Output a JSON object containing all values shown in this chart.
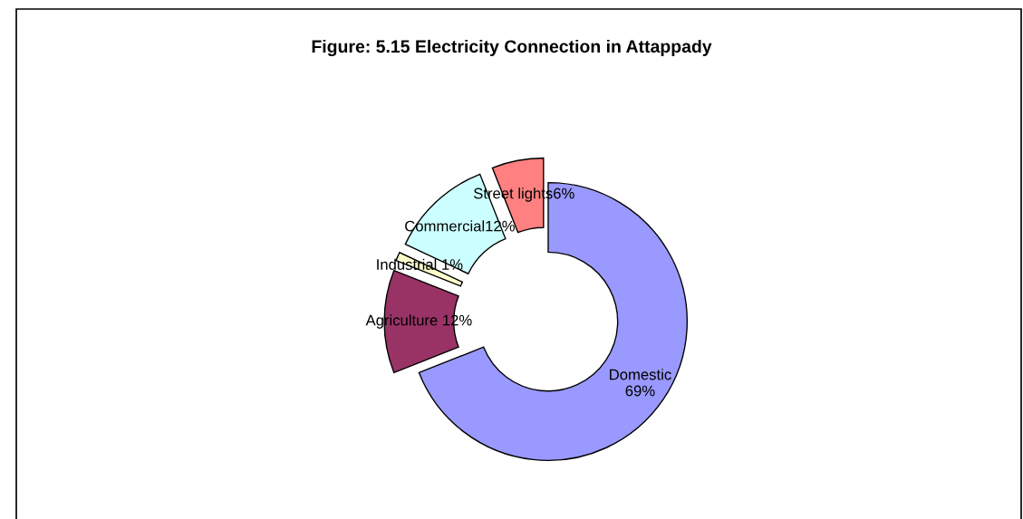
{
  "chart_data": {
    "type": "donut",
    "title": "Figure: 5.15 Electricity Connection in Attappady",
    "categories": [
      "Domestic",
      "Agriculture",
      "Industrial",
      "Commercial",
      "Street lights"
    ],
    "values": [
      69,
      12,
      1,
      12,
      6
    ],
    "value_labels": [
      "\n69%",
      " 12%",
      " 1%",
      "12%",
      "6%"
    ],
    "colors": [
      "#9999ff",
      "#993366",
      "#ffffcc",
      "#ccffff",
      "#ff8080"
    ],
    "legend": false
  }
}
